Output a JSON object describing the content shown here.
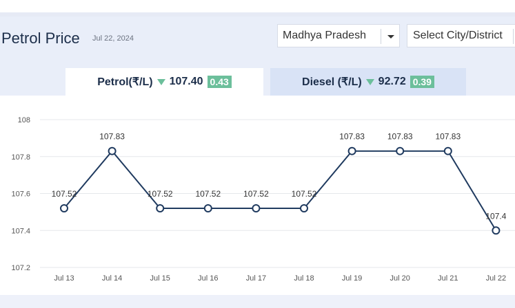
{
  "header": {
    "title": "Petrol Price",
    "date": "Jul 22, 2024"
  },
  "filters": {
    "state": "Madhya Pradesh",
    "city_placeholder": "Select City/District"
  },
  "tabs": [
    {
      "fuel": "Petrol(₹/L)",
      "price": "107.40",
      "change": "0.43",
      "active": true
    },
    {
      "fuel": "Diesel (₹/L)",
      "price": "92.72",
      "change": "0.39",
      "active": false
    }
  ],
  "colors": {
    "line": "#1f3a5f",
    "badge": "#6cbf9b",
    "grid": "#e5e7eb"
  },
  "chart_data": {
    "type": "line",
    "categories": [
      "Jul 13",
      "Jul 14",
      "Jul 15",
      "Jul 16",
      "Jul 17",
      "Jul 18",
      "Jul 19",
      "Jul 20",
      "Jul 21",
      "Jul 22"
    ],
    "values": [
      107.52,
      107.83,
      107.52,
      107.52,
      107.52,
      107.52,
      107.83,
      107.83,
      107.83,
      107.4
    ],
    "data_labels": [
      "107.52",
      "107.83",
      "107.52",
      "107.52",
      "107.52",
      "107.52",
      "107.83",
      "107.83",
      "107.83",
      "107.4"
    ],
    "yticks": [
      "108",
      "107.8",
      "107.6",
      "107.4",
      "107.2"
    ],
    "ylim": [
      107.2,
      108
    ],
    "grid": true,
    "legend": "none"
  }
}
